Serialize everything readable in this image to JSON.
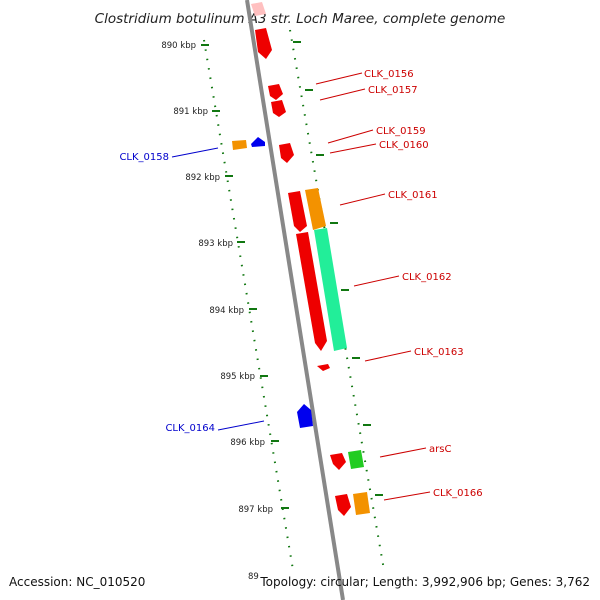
{
  "title": "Clostridium botulinum A3 str. Loch Maree, complete genome",
  "footer": {
    "accession": "Accession: NC_010520",
    "topology": "Topology: circular; Length: 3,992,906 bp; Genes: 3,762",
    "bottom_tick": "89"
  },
  "colors": {
    "red": "#ee0000",
    "orange": "#f39200",
    "blue": "#0000ee",
    "green": "#22cc22",
    "teal": "#22ee99",
    "pink": "#ffc0c0",
    "axis": "#888888",
    "tick": "#117711",
    "forward_label": "#cc0000",
    "reverse_label": "#0000cc"
  },
  "ticks": [
    "890 kbp",
    "891 kbp",
    "892 kbp",
    "893 kbp",
    "894 kbp",
    "895 kbp",
    "896 kbp",
    "897 kbp"
  ],
  "labels": {
    "clk0156": "CLK_0156",
    "clk0157": "CLK_0157",
    "clk0158": "CLK_0158",
    "clk0159": "CLK_0159",
    "clk0160": "CLK_0160",
    "clk0161": "CLK_0161",
    "clk0162": "CLK_0162",
    "clk0163": "CLK_0163",
    "clk0164": "CLK_0164",
    "arsc": "arsC",
    "clk0166": "CLK_0166"
  }
}
